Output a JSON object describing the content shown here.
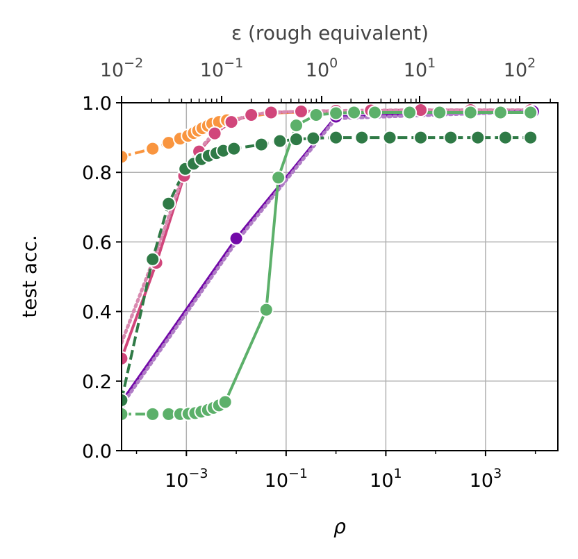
{
  "chart_data": {
    "type": "line",
    "xlabel": "ρ",
    "ylabel": "test acc.",
    "x2label": "ε (rough equivalent)",
    "xscale": "log",
    "x_log10_range": [
      -4.3,
      4.45
    ],
    "ylim": [
      0.0,
      1.0
    ],
    "grid": true,
    "yticks": [
      "0.0",
      "0.2",
      "0.4",
      "0.6",
      "0.8",
      "1.0"
    ],
    "xticks": [
      {
        "base": "10",
        "exp": "−3",
        "value": 0.001
      },
      {
        "base": "10",
        "exp": "−1",
        "value": 0.1
      },
      {
        "base": "10",
        "exp": "1",
        "value": 10
      },
      {
        "base": "10",
        "exp": "3",
        "value": 1000
      }
    ],
    "top_xticks": [
      {
        "base": "10",
        "exp": "−2"
      },
      {
        "base": "10",
        "exp": "−1"
      },
      {
        "base": "10",
        "exp": "0"
      },
      {
        "base": "10",
        "exp": "1"
      },
      {
        "base": "10",
        "exp": "2"
      }
    ],
    "series": [
      {
        "color": "#f9953f",
        "dash": "dashed",
        "marker": true,
        "x": [
          5e-05,
          0.00021,
          0.00044,
          0.00075,
          0.00108,
          0.0014,
          0.00172,
          0.0021,
          0.0027,
          0.0033,
          0.0045,
          0.0065
        ],
        "y": [
          0.845,
          0.868,
          0.885,
          0.897,
          0.905,
          0.913,
          0.92,
          0.927,
          0.934,
          0.94,
          0.945,
          0.95
        ]
      },
      {
        "color": "#f9953f",
        "dash": "solid",
        "marker": false,
        "x": [
          0.0065,
          0.05,
          0.4,
          4,
          40,
          400,
          8000
        ],
        "y": [
          0.95,
          0.97,
          0.975,
          0.978,
          0.978,
          0.979,
          0.979
        ]
      },
      {
        "color": "#d1467b",
        "dash": "solid",
        "marker": true,
        "x": [
          5e-05,
          0.00025,
          0.0009,
          0.0018,
          0.0037,
          0.008,
          0.02,
          0.05,
          0.2,
          1,
          5,
          50,
          500,
          8000
        ],
        "y": [
          0.265,
          0.54,
          0.79,
          0.86,
          0.912,
          0.945,
          0.965,
          0.972,
          0.975,
          0.977,
          0.978,
          0.979,
          0.979,
          0.979
        ]
      },
      {
        "color": "#d98ab0",
        "dash": "dotted",
        "marker": false,
        "x": [
          5e-05,
          0.00025,
          0.0009,
          0.0018,
          0.0037,
          0.008,
          0.02,
          0.05,
          0.2,
          1,
          5,
          50,
          500,
          8000
        ],
        "y": [
          0.31,
          0.57,
          0.8,
          0.865,
          0.915,
          0.947,
          0.966,
          0.972,
          0.975,
          0.977,
          0.978,
          0.979,
          0.979,
          0.979
        ]
      },
      {
        "color": "#7209a8",
        "dash": "solid",
        "marker": true,
        "x": [
          5e-05,
          0.01,
          1.0,
          9000
        ],
        "y": [
          0.14,
          0.61,
          0.96,
          0.975
        ]
      },
      {
        "color": "#b07cc6",
        "dash": "dotted",
        "marker": false,
        "x": [
          5e-05,
          0.01,
          1.0,
          9000
        ],
        "y": [
          0.13,
          0.6,
          0.955,
          0.975
        ]
      },
      {
        "color": "#2f7a46",
        "dash": "dashed",
        "marker": true,
        "x": [
          5e-05,
          0.00021,
          0.00044,
          0.00095,
          0.0014,
          0.002,
          0.0028,
          0.004,
          0.0055,
          0.009,
          0.032,
          0.075,
          0.16,
          0.35,
          1.0,
          3.3,
          12,
          50,
          200,
          700,
          2500,
          8000
        ],
        "y": [
          0.145,
          0.55,
          0.71,
          0.81,
          0.825,
          0.838,
          0.848,
          0.855,
          0.862,
          0.868,
          0.88,
          0.89,
          0.895,
          0.898,
          0.9,
          0.9,
          0.9,
          0.9,
          0.9,
          0.9,
          0.9,
          0.9
        ]
      },
      {
        "color": "#5cb06a",
        "dash": "dashed",
        "marker": true,
        "x": [
          5e-05,
          0.00021,
          0.00044,
          0.00075,
          0.0011,
          0.0015,
          0.002,
          0.0027,
          0.0035,
          0.0045,
          0.006
        ],
        "y": [
          0.105,
          0.105,
          0.105,
          0.105,
          0.106,
          0.108,
          0.112,
          0.117,
          0.123,
          0.13,
          0.14
        ]
      },
      {
        "color": "#5cb06a",
        "dash": "solid",
        "marker": true,
        "x": [
          0.006,
          0.04,
          0.07,
          0.16,
          0.4,
          1.0,
          2.3,
          6,
          30,
          120,
          500,
          2000,
          8000
        ],
        "y": [
          0.14,
          0.405,
          0.785,
          0.935,
          0.965,
          0.97,
          0.972,
          0.972,
          0.972,
          0.972,
          0.972,
          0.972,
          0.972
        ]
      }
    ]
  }
}
